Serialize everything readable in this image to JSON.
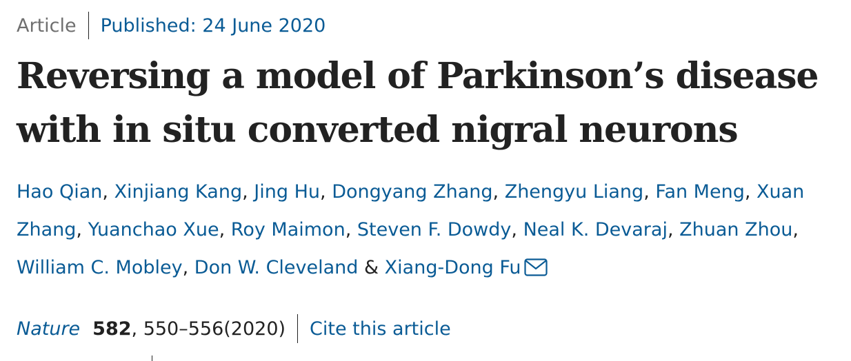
{
  "article": {
    "type": "Article",
    "published": "Published: 24 June 2020",
    "title": "Reversing a model of Parkinson’s disease with in situ converted nigral neurons"
  },
  "authors": {
    "list": [
      "Hao Qian",
      "Xinjiang Kang",
      "Jing Hu",
      "Dongyang Zhang",
      "Zhengyu Liang",
      "Fan Meng",
      "Xuan Zhang",
      "Yuanchao Xue",
      "Roy Maimon",
      "Steven F. Dowdy",
      "Neal K. Devaraj",
      "Zhuan Zhou",
      "William C. Mobley",
      "Don W. Cleveland",
      "Xiang-Dong Fu"
    ],
    "comma": ",",
    "ampersand": "&",
    "contact_icon": "envelope-icon"
  },
  "citation": {
    "journal": "Nature",
    "volume": "582",
    "pages_year": ", 550–556(2020)",
    "cite_label": "Cite this article"
  },
  "colors": {
    "link": "#0a5b95",
    "text": "#222222",
    "muted": "#6f6f6f"
  }
}
